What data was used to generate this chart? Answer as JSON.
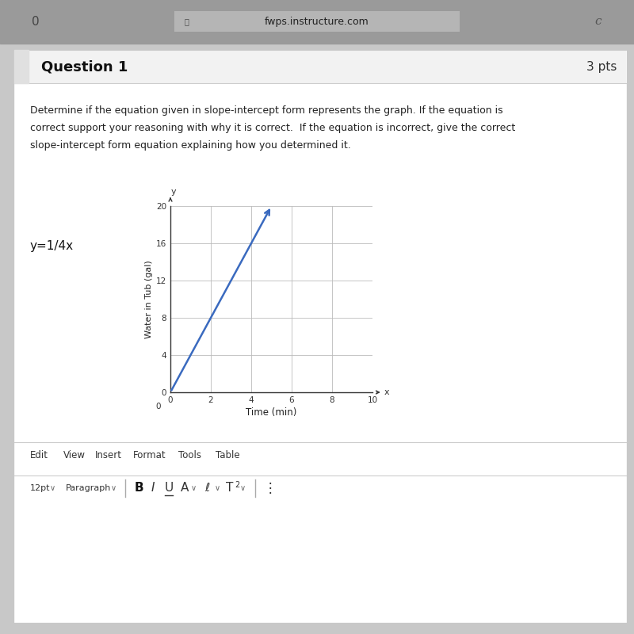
{
  "question_title": "Question 1",
  "question_pts": "3 pts",
  "question_text_line1": "Determine if the equation given in slope-intercept form represents the graph. If the equation is",
  "question_text_line2": "correct support your reasoning with why it is correct.  If the equation is incorrect, give the correct",
  "question_text_line3": "slope-intercept form equation explaining how you determined it.",
  "equation_label": "y=1/4x",
  "xlabel": "Time (min)",
  "ylabel": "Water in Tub (gal)",
  "xlim": [
    0,
    10
  ],
  "ylim": [
    0,
    20
  ],
  "xticks": [
    0,
    2,
    4,
    6,
    8,
    10
  ],
  "yticks": [
    0,
    4,
    8,
    12,
    16,
    20
  ],
  "line_x": [
    0,
    5
  ],
  "line_y": [
    0,
    20
  ],
  "line_color": "#3a6abf",
  "line_width": 1.8,
  "grid_color": "#bbbbbb",
  "browser_bar_color": "#9a9a9a",
  "page_bg_color": "#c8c8c8",
  "card_bg_color": "#f7f7f7",
  "content_bg_color": "#ffffff",
  "header_bg_color": "#f2f2f2",
  "toolbar_items": [
    "Edit",
    "View",
    "Insert",
    "Format",
    "Tools",
    "Table"
  ],
  "url_text": "fwps.instructure.com"
}
